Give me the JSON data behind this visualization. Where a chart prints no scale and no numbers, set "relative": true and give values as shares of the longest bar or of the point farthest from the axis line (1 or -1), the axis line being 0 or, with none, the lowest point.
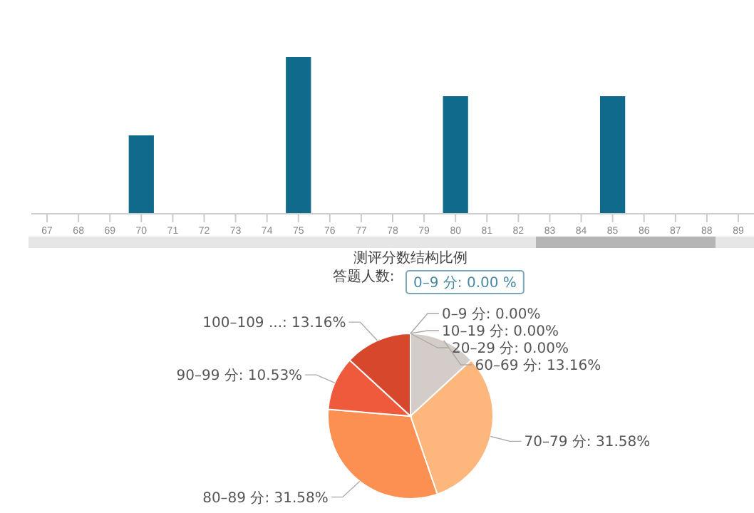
{
  "chart_data": [
    {
      "type": "bar",
      "relative": true,
      "categories": [
        "67",
        "68",
        "69",
        "70",
        "71",
        "72",
        "73",
        "74",
        "75",
        "76",
        "77",
        "78",
        "79",
        "80",
        "81",
        "82",
        "83",
        "84",
        "85",
        "86",
        "87",
        "88",
        "89"
      ],
      "values": [
        0,
        0,
        0,
        0.5,
        0,
        0,
        0,
        0,
        1,
        0,
        0,
        0,
        0,
        0.75,
        0,
        0,
        0,
        0,
        0.75,
        0,
        0,
        0,
        0
      ],
      "color": "#0f6a8b"
    },
    {
      "type": "pie",
      "title": "测评分数结构比例",
      "subtitle": "答题人数:",
      "annotations": [
        "0–9 分: 0.00 %"
      ],
      "categories": [
        "0–9 分: 0.00%",
        "10–19 分: 0.00%",
        "20–29 分: 0.00%",
        "60–69 分: 13.16%",
        "70–79 分: 31.58%",
        "80–89 分: 31.58%",
        "90–99 分: 10.53%",
        "100–109 ...: 13.16%"
      ],
      "values": [
        0,
        0,
        0,
        13.16,
        31.58,
        31.58,
        10.53,
        13.16
      ],
      "colors": [
        "#e9e4e0",
        "#ddd6d1",
        "#d6cfca",
        "#d3ccc8",
        "#fdb77d",
        "#fc8f52",
        "#ee5a3b",
        "#d7472c"
      ]
    }
  ]
}
